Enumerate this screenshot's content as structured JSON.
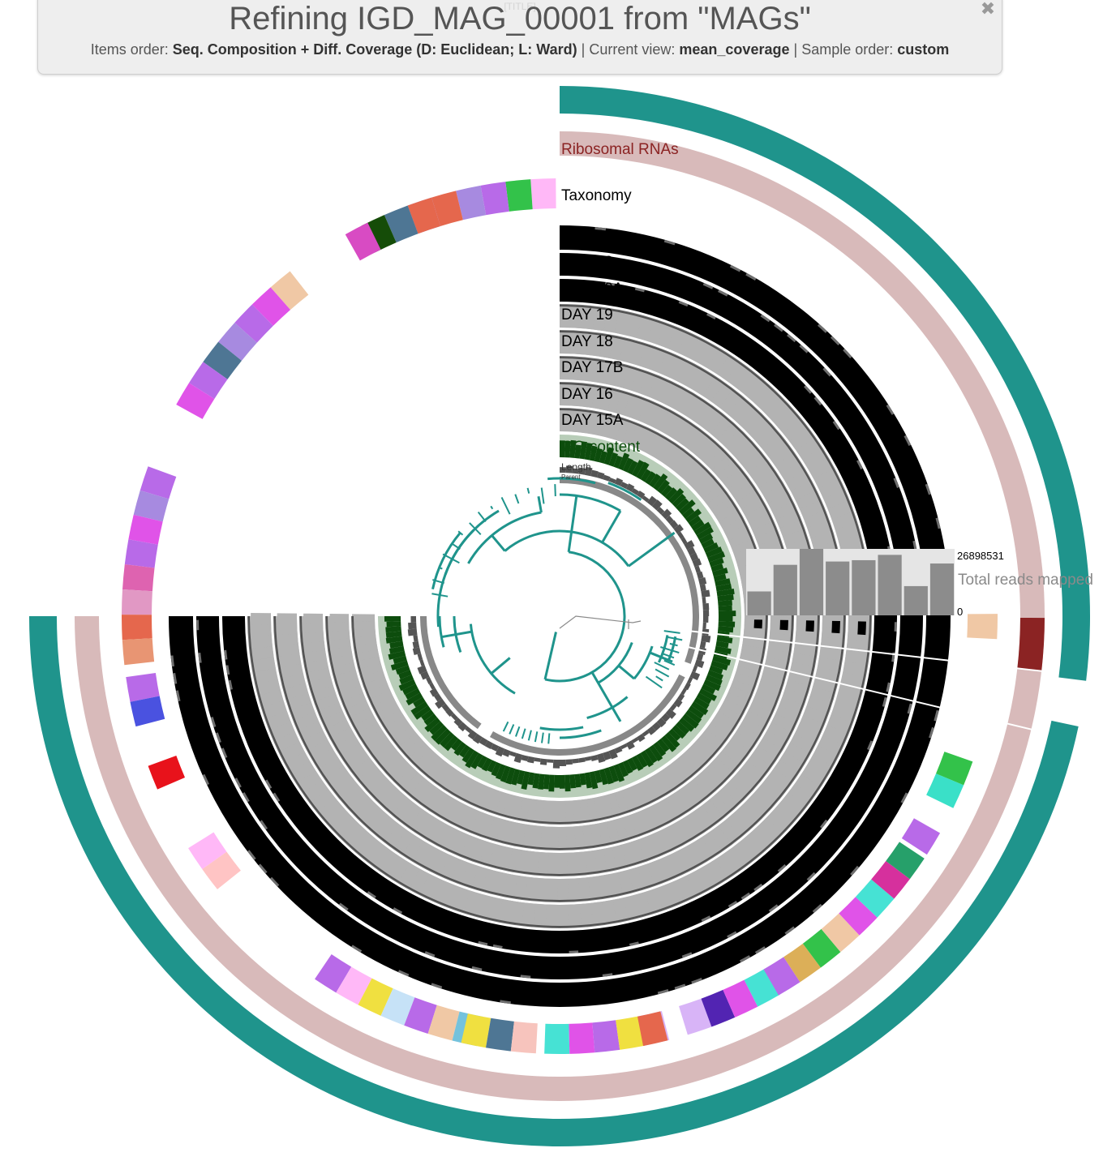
{
  "header": {
    "ghost_title": "[TITLE]",
    "title": "Refining IGD_MAG_00001 from \"MAGs\"",
    "items_order_label": "Items order:",
    "items_order_value": "Seq. Composition + Diff. Coverage (D: Euclidean; L: Ward)",
    "current_view_label": "Current view:",
    "current_view_value": "mean_coverage",
    "sample_order_label": "Sample order:",
    "sample_order_value": "custom",
    "separator": "|",
    "close_icon": "close-icon"
  },
  "layers": {
    "ribosomal_rnas": "Ribosomal RNAs",
    "taxonomy": "Taxonomy",
    "samples": [
      "DAY 24",
      "DAY 23",
      "DAY 22A",
      "DAY 19",
      "DAY 18",
      "DAY 17B",
      "DAY 16",
      "DAY 15A"
    ],
    "gc_content": "GC-content",
    "length": "Length",
    "parent": "Parent"
  },
  "total_reads": {
    "label": "Total reads mapped",
    "max": "26898531",
    "min": "0",
    "relative_values": [
      0.36,
      0.76,
      1.0,
      0.81,
      0.83,
      0.91,
      0.44,
      0.78
    ]
  },
  "colors": {
    "teal_outer": "#1f948c",
    "ribosomal": "#d8baba",
    "ribosomal_label": "#8b2323",
    "black_layer": "#000000",
    "gray_layer": "#b3b3b3",
    "gc_layer": "#0d4d0d",
    "gc_background": "#b8cdb8",
    "length_layer": "#555555",
    "parent_layer": "#888888",
    "dendrogram": "#1f948c",
    "reads_bar": "#8c8c8c",
    "reads_background": "#e5e5e5"
  },
  "taxonomy_blocks": [
    [
      "#ffb8f7",
      "#33c24a",
      "#b86ae8",
      "#a78ae0",
      "#e5674d",
      "#a78ae0"
    ],
    [
      "#e5674d",
      "#4e7694",
      "#154c08"
    ],
    [
      "#d84bc3"
    ],
    [
      "#f0c8a5",
      "#e053e8",
      "#b86ae8",
      "#a78ae0",
      "#4e7694",
      "#b86ae8",
      "#e053e8"
    ],
    [
      "#b86ae8",
      "#a78ae0",
      "#e053e8",
      "#b86ae8",
      "#de63b0",
      "#e198c4",
      "#e5674d",
      "#e89573"
    ],
    [
      "#b86ae8",
      "#4a52e0"
    ],
    [
      "#e8121b"
    ],
    [
      "#ffb8f7",
      "#ffc4c4"
    ],
    [
      "#b86ae8",
      "#ffb8f7",
      "#f0e040",
      "#c6e2f7",
      "#b86ae8",
      "#f0c8a5",
      "#74c2dc"
    ],
    [
      "#f0e040",
      "#4e7694",
      "#f7c4bd"
    ],
    [
      "#46e2d4",
      "#e053e8",
      "#b86ae8",
      "#f0e040",
      "#d8b4f7"
    ],
    [
      "#e5674d"
    ],
    [
      "#d8b4f7",
      "#5224b2",
      "#e053e8",
      "#46e2d4"
    ],
    [
      "#b86ae8",
      "#dcaf58",
      "#33c24a",
      "#f0c8a5",
      "#e053e8",
      "#46e2d4",
      "#d6309d",
      "#26a06a"
    ],
    [
      "#b86ae8"
    ],
    [
      "#3ae0c8",
      "#33c24a"
    ],
    [
      "#f0c8a5"
    ]
  ]
}
